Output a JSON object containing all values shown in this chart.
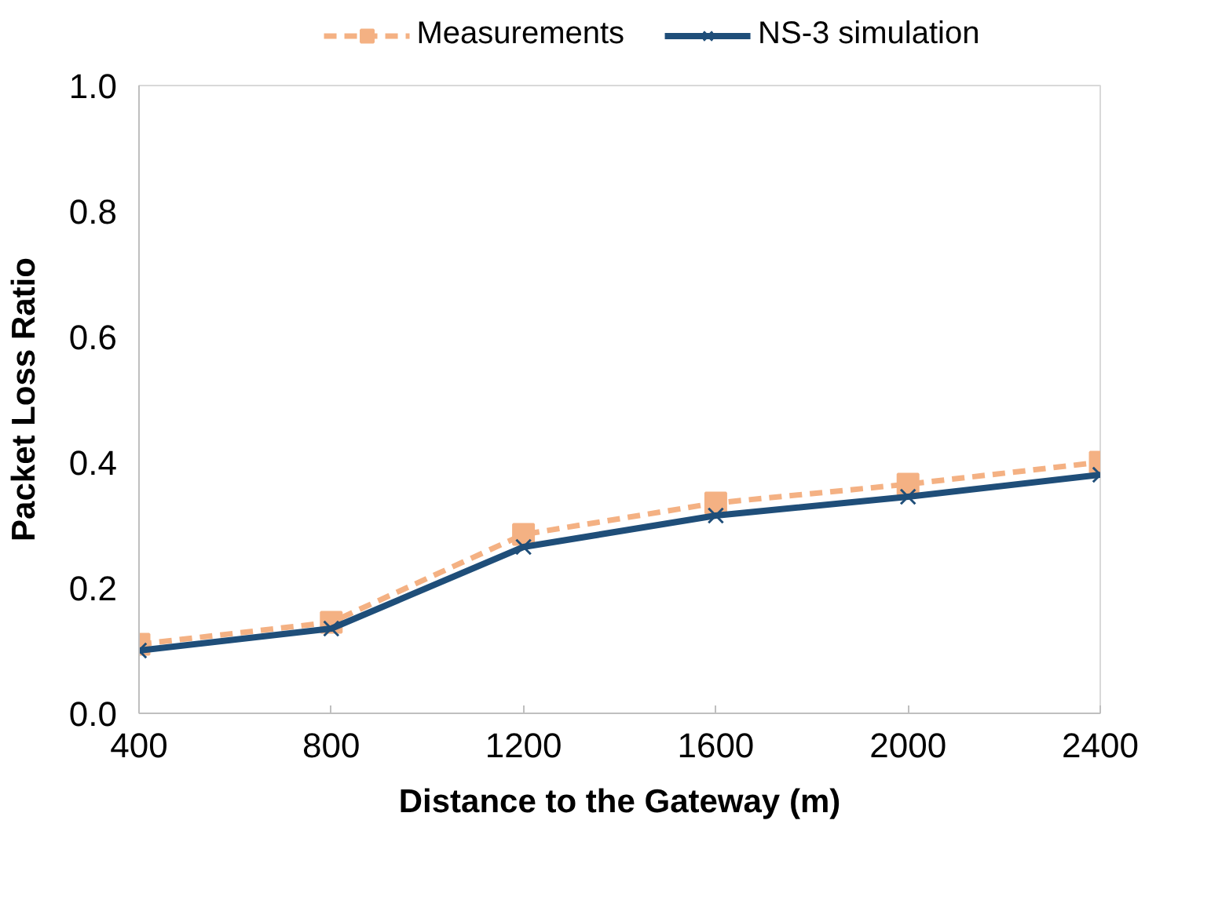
{
  "chart_data": {
    "type": "line",
    "xlabel": "Distance to the Gateway (m)",
    "ylabel": "Packet Loss Ratio",
    "x": [
      400,
      800,
      1200,
      1600,
      2000,
      2400
    ],
    "xlim": [
      400,
      2400
    ],
    "xticks": [
      400,
      800,
      1200,
      1600,
      2000,
      2400
    ],
    "ylim": [
      0,
      1
    ],
    "yticks": [
      {
        "value": 0,
        "label": "0.0"
      },
      {
        "value": 0.2,
        "label": "0.2"
      },
      {
        "value": 0.4,
        "label": "0.4"
      },
      {
        "value": 0.6,
        "label": "0.6"
      },
      {
        "value": 0.8,
        "label": "0.8"
      },
      {
        "value": 1,
        "label": "1.0"
      }
    ],
    "grid": false,
    "legend": "top",
    "series": [
      {
        "name": "Measurements",
        "color": "#f4b183",
        "marker": "square",
        "line_style": "dashed",
        "values": [
          0.11,
          0.145,
          0.285,
          0.335,
          0.365,
          0.4
        ]
      },
      {
        "name": "NS-3 simulation",
        "color": "#1f4e79",
        "marker": "cross",
        "line_style": "solid",
        "values": [
          0.1,
          0.135,
          0.265,
          0.315,
          0.345,
          0.38
        ]
      }
    ]
  }
}
